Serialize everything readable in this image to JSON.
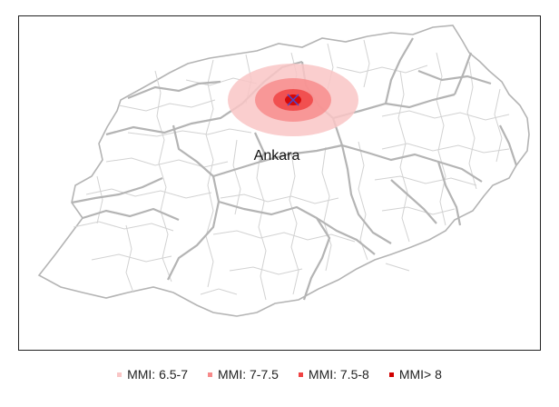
{
  "map": {
    "city_label": "Ankara",
    "epicenter_marker": "x-cross-icon",
    "intensity_zones": [
      {
        "label": "MMI: 6.5-7",
        "color": "#f9c6c6"
      },
      {
        "label": "MMI: 7-7.5",
        "color": "#f78a8a"
      },
      {
        "label": "MMI: 7.5-8",
        "color": "#f04343"
      },
      {
        "label": "MMI> 8",
        "color": "#d10000"
      }
    ],
    "colors": {
      "province_border": "#b4b4b4",
      "district_border": "#d2d2d2",
      "epicenter_marker": "#4a4ad0"
    }
  }
}
